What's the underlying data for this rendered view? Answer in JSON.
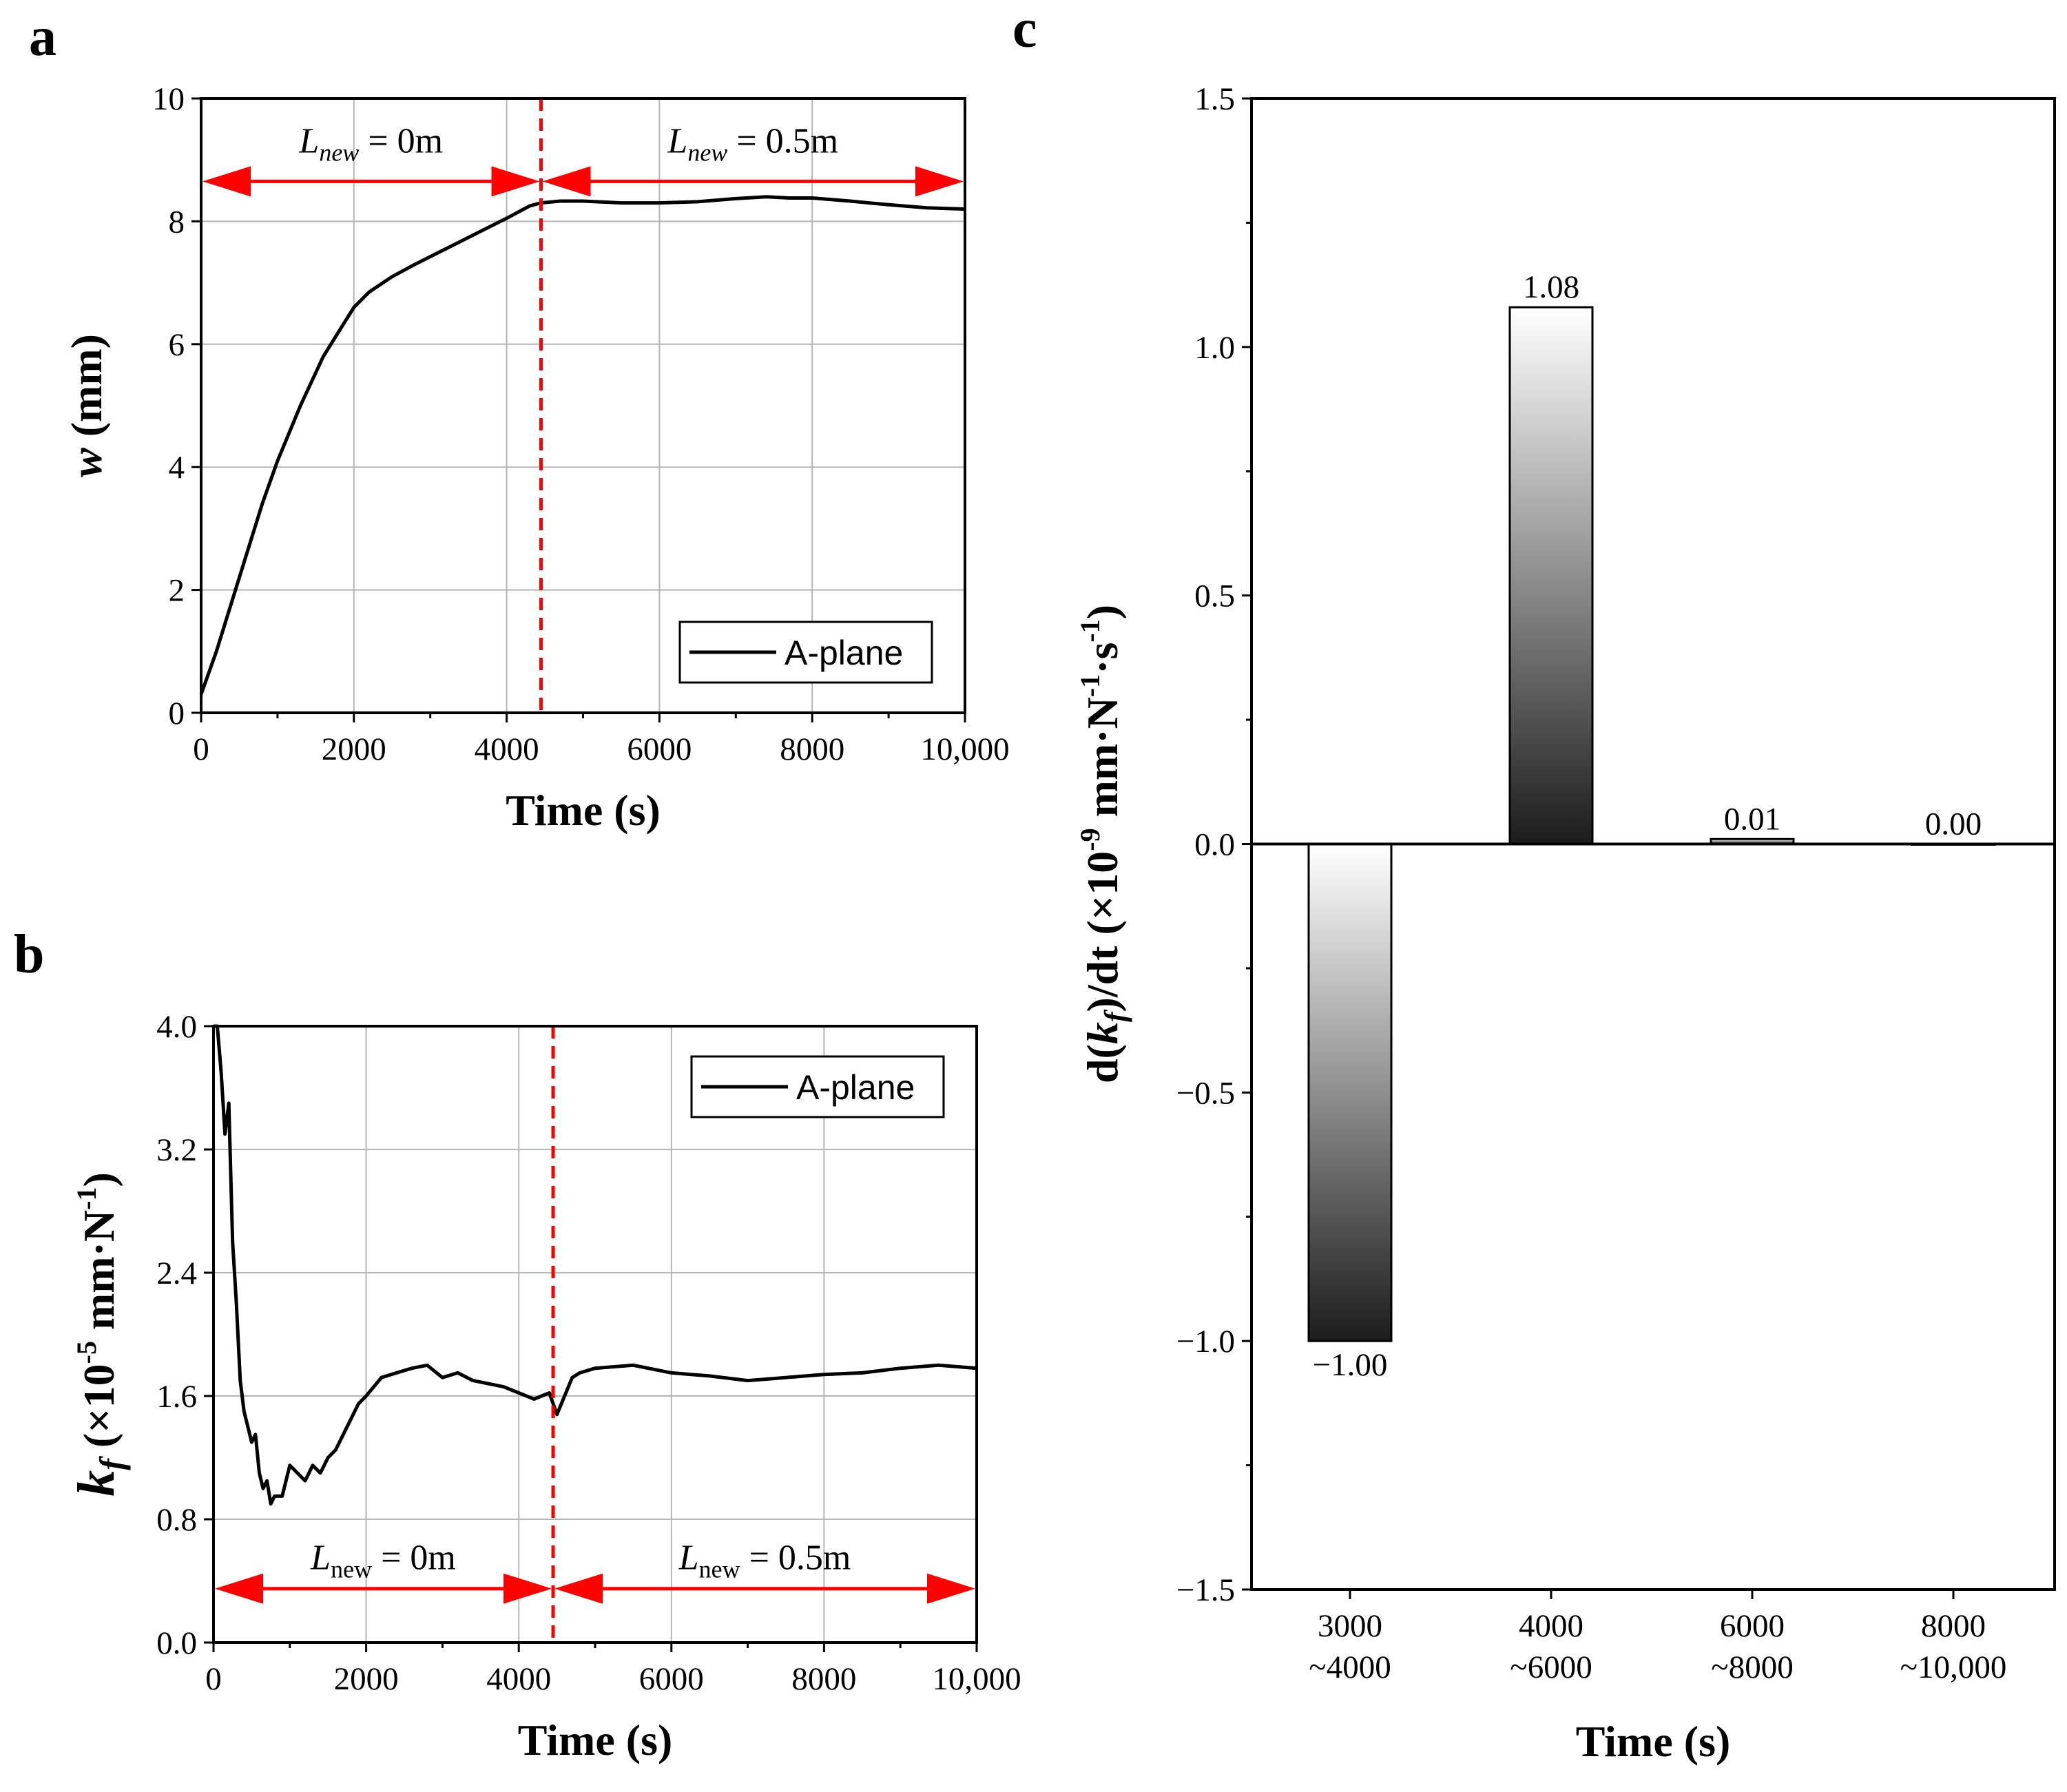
{
  "chart_data": [
    {
      "panel": "a",
      "type": "line",
      "xlabel": "Time (s)",
      "ylabel_var": "w",
      "ylabel_unit": "(mm)",
      "xlim": [
        0,
        10000
      ],
      "ylim": [
        0,
        10
      ],
      "xticks": [
        0,
        2000,
        4000,
        6000,
        8000,
        10000
      ],
      "xtick_labels": [
        "0",
        "2000",
        "4000",
        "6000",
        "8000",
        "10,000"
      ],
      "yticks": [
        0,
        2,
        4,
        6,
        8,
        10
      ],
      "ytick_labels": [
        "0",
        "2",
        "4",
        "6",
        "8",
        "10"
      ],
      "grid": true,
      "legend": {
        "label": "A-plane",
        "position": "bottom-right"
      },
      "divider_x": 4450,
      "annotations": [
        {
          "prefix": "L",
          "sub": "new",
          "suffix": " = 0m",
          "from": 0,
          "to": 4450,
          "y": 8.65
        },
        {
          "prefix": "L",
          "sub": "new",
          "suffix": " = 0.5m",
          "from": 4450,
          "to": 10000,
          "y": 8.65
        }
      ],
      "series": [
        {
          "name": "A-plane",
          "x": [
            0,
            200,
            500,
            800,
            1000,
            1300,
            1600,
            1900,
            2000,
            2200,
            2500,
            2800,
            3200,
            3600,
            4000,
            4300,
            4450,
            4700,
            5000,
            5500,
            6000,
            6500,
            7000,
            7400,
            7700,
            8000,
            8500,
            9000,
            9500,
            10000
          ],
          "y": [
            0.3,
            1.0,
            2.2,
            3.4,
            4.1,
            5.0,
            5.8,
            6.4,
            6.6,
            6.85,
            7.1,
            7.3,
            7.55,
            7.8,
            8.05,
            8.25,
            8.3,
            8.33,
            8.33,
            8.3,
            8.3,
            8.32,
            8.37,
            8.4,
            8.38,
            8.38,
            8.33,
            8.27,
            8.22,
            8.2
          ]
        }
      ]
    },
    {
      "panel": "b",
      "type": "line",
      "xlabel": "Time (s)",
      "ylabel_var": "k",
      "ylabel_sub": "f",
      "ylabel_unit": " (×10",
      "ylabel_exp": "-5",
      "ylabel_unit2": " mm·N",
      "ylabel_exp2": "-1",
      "ylabel_close": ")",
      "xlim": [
        0,
        10000
      ],
      "ylim": [
        0,
        4.0
      ],
      "xticks": [
        0,
        2000,
        4000,
        6000,
        8000,
        10000
      ],
      "xtick_labels": [
        "0",
        "2000",
        "4000",
        "6000",
        "8000",
        "10,000"
      ],
      "yticks": [
        0,
        0.8,
        1.6,
        2.4,
        3.2,
        4.0
      ],
      "ytick_labels": [
        "0.0",
        "0.8",
        "1.6",
        "2.4",
        "3.2",
        "4.0"
      ],
      "grid": true,
      "legend": {
        "label": "A-plane",
        "position": "top-right"
      },
      "divider_x": 4450,
      "annotations": [
        {
          "prefix": "L",
          "sub": "new",
          "suffix": " = 0m",
          "from": 0,
          "to": 4450,
          "y": 0.35
        },
        {
          "prefix": "L",
          "sub": "new",
          "suffix": " = 0.5m",
          "from": 4450,
          "to": 10000,
          "y": 0.35
        }
      ],
      "series": [
        {
          "name": "A-plane",
          "x": [
            0,
            50,
            100,
            150,
            200,
            250,
            300,
            350,
            400,
            450,
            500,
            550,
            600,
            650,
            700,
            750,
            800,
            900,
            1000,
            1100,
            1200,
            1300,
            1400,
            1500,
            1600,
            1700,
            1800,
            1900,
            2000,
            2200,
            2400,
            2600,
            2800,
            3000,
            3200,
            3400,
            3600,
            3800,
            4000,
            4200,
            4300,
            4400,
            4450,
            4500,
            4600,
            4700,
            4800,
            5000,
            5500,
            6000,
            6500,
            7000,
            7500,
            8000,
            8500,
            9000,
            9500,
            10000
          ],
          "y": [
            4.0,
            4.0,
            3.7,
            3.3,
            3.5,
            2.6,
            2.2,
            1.7,
            1.5,
            1.4,
            1.3,
            1.35,
            1.1,
            1.0,
            1.05,
            0.9,
            0.95,
            0.95,
            1.15,
            1.1,
            1.05,
            1.15,
            1.1,
            1.2,
            1.25,
            1.35,
            1.45,
            1.55,
            1.6,
            1.72,
            1.75,
            1.78,
            1.8,
            1.72,
            1.75,
            1.7,
            1.68,
            1.66,
            1.62,
            1.58,
            1.6,
            1.62,
            1.55,
            1.48,
            1.6,
            1.72,
            1.75,
            1.78,
            1.8,
            1.75,
            1.73,
            1.7,
            1.72,
            1.74,
            1.75,
            1.78,
            1.8,
            1.78
          ]
        }
      ]
    },
    {
      "panel": "c",
      "type": "bar",
      "xlabel": "Time (s)",
      "ylabel_pre": "d(",
      "ylabel_var": "k",
      "ylabel_sub": "f",
      "ylabel_mid": ")/dt (×10",
      "ylabel_exp": "-9",
      "ylabel_unit": " mm·N",
      "ylabel_exp2": "-1",
      "ylabel_dot": "·s",
      "ylabel_exp3": "-1",
      "ylabel_close": ")",
      "ylim": [
        -1.5,
        1.5
      ],
      "yticks": [
        -1.5,
        -1.0,
        -0.5,
        0.0,
        0.5,
        1.0,
        1.5
      ],
      "ytick_labels": [
        "−1.5",
        "−1.0",
        "−0.5",
        "0.0",
        "0.5",
        "1.0",
        "1.5"
      ],
      "grid": false,
      "categories": [
        {
          "line1": "3000",
          "line2": "~4000"
        },
        {
          "line1": "4000",
          "line2": "~6000"
        },
        {
          "line1": "6000",
          "line2": "~8000"
        },
        {
          "line1": "8000",
          "line2": "~10,000"
        }
      ],
      "values": [
        -1.0,
        1.08,
        0.01,
        0.0
      ],
      "value_labels": [
        "−1.00",
        "1.08",
        "0.01",
        "0.00"
      ]
    }
  ]
}
